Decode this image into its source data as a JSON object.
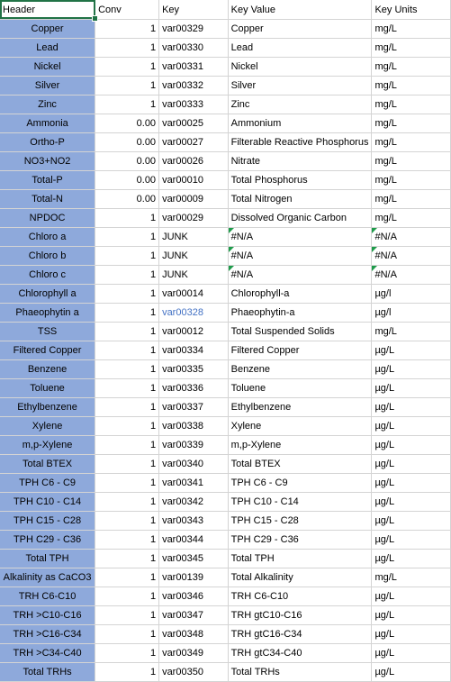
{
  "columns": [
    "Header",
    "Conv",
    "Key",
    "Key Value",
    "Key Units"
  ],
  "rows": [
    {
      "header": "Copper",
      "conv": "1",
      "key": "var00329",
      "value": "Copper",
      "units": "mg/L"
    },
    {
      "header": "Lead",
      "conv": "1",
      "key": "var00330",
      "value": "Lead",
      "units": "mg/L"
    },
    {
      "header": "Nickel",
      "conv": "1",
      "key": "var00331",
      "value": "Nickel",
      "units": "mg/L"
    },
    {
      "header": "Silver",
      "conv": "1",
      "key": "var00332",
      "value": "Silver",
      "units": "mg/L"
    },
    {
      "header": "Zinc",
      "conv": "1",
      "key": "var00333",
      "value": "Zinc",
      "units": "mg/L"
    },
    {
      "header": "Ammonia",
      "conv": "0.00",
      "key": "var00025",
      "value": "Ammonium",
      "units": "mg/L"
    },
    {
      "header": "Ortho-P",
      "conv": "0.00",
      "key": "var00027",
      "value": "Filterable Reactive Phosphorus",
      "units": "mg/L"
    },
    {
      "header": "NO3+NO2",
      "conv": "0.00",
      "key": "var00026",
      "value": "Nitrate",
      "units": "mg/L"
    },
    {
      "header": "Total-P",
      "conv": "0.00",
      "key": "var00010",
      "value": "Total Phosphorus",
      "units": "mg/L"
    },
    {
      "header": "Total-N",
      "conv": "0.00",
      "key": "var00009",
      "value": "Total Nitrogen",
      "units": "mg/L"
    },
    {
      "header": "NPDOC",
      "conv": "1",
      "key": "var00029",
      "value": "Dissolved Organic Carbon",
      "units": "mg/L"
    },
    {
      "header": "Chloro a",
      "conv": "1",
      "key": "JUNK",
      "value": "#N/A",
      "units": "#N/A",
      "error": true
    },
    {
      "header": "Chloro b",
      "conv": "1",
      "key": "JUNK",
      "value": "#N/A",
      "units": "#N/A",
      "error": true
    },
    {
      "header": "Chloro c",
      "conv": "1",
      "key": "JUNK",
      "value": "#N/A",
      "units": "#N/A",
      "error": true
    },
    {
      "header": "Chlorophyll a",
      "conv": "1",
      "key": "var00014",
      "value": "Chlorophyll-a",
      "units": "µg/l"
    },
    {
      "header": "Phaeophytin a",
      "conv": "1",
      "key": "var00328",
      "value": "Phaeophytin-a",
      "units": "µg/l",
      "link": true
    },
    {
      "header": "TSS",
      "conv": "1",
      "key": "var00012",
      "value": "Total Suspended Solids",
      "units": "mg/L"
    },
    {
      "header": "Filtered Copper",
      "conv": "1",
      "key": "var00334",
      "value": "Filtered Copper",
      "units": "µg/L"
    },
    {
      "header": "Benzene",
      "conv": "1",
      "key": "var00335",
      "value": "Benzene",
      "units": "µg/L"
    },
    {
      "header": "Toluene",
      "conv": "1",
      "key": "var00336",
      "value": "Toluene",
      "units": "µg/L"
    },
    {
      "header": "Ethylbenzene",
      "conv": "1",
      "key": "var00337",
      "value": "Ethylbenzene",
      "units": "µg/L"
    },
    {
      "header": "Xylene",
      "conv": "1",
      "key": "var00338",
      "value": "Xylene",
      "units": "µg/L"
    },
    {
      "header": "m,p-Xylene",
      "conv": "1",
      "key": "var00339",
      "value": "m,p-Xylene",
      "units": "µg/L"
    },
    {
      "header": "Total BTEX",
      "conv": "1",
      "key": "var00340",
      "value": "Total BTEX",
      "units": "µg/L"
    },
    {
      "header": "TPH C6 - C9",
      "conv": "1",
      "key": "var00341",
      "value": "TPH C6 - C9",
      "units": "µg/L"
    },
    {
      "header": "TPH C10 - C14",
      "conv": "1",
      "key": "var00342",
      "value": "TPH C10 - C14",
      "units": "µg/L"
    },
    {
      "header": "TPH C15 - C28",
      "conv": "1",
      "key": "var00343",
      "value": "TPH C15 - C28",
      "units": "µg/L"
    },
    {
      "header": "TPH C29 - C36",
      "conv": "1",
      "key": "var00344",
      "value": "TPH C29 - C36",
      "units": "µg/L"
    },
    {
      "header": "Total TPH",
      "conv": "1",
      "key": "var00345",
      "value": "Total TPH",
      "units": "µg/L"
    },
    {
      "header": "Alkalinity as CaCO3",
      "conv": "1",
      "key": "var00139",
      "value": "Total Alkalinity",
      "units": "mg/L"
    },
    {
      "header": "TRH C6-C10",
      "conv": "1",
      "key": "var00346",
      "value": "TRH C6-C10",
      "units": "µg/L"
    },
    {
      "header": "TRH >C10-C16",
      "conv": "1",
      "key": "var00347",
      "value": "TRH gtC10-C16",
      "units": "µg/L"
    },
    {
      "header": "TRH >C16-C34",
      "conv": "1",
      "key": "var00348",
      "value": "TRH gtC16-C34",
      "units": "µg/L"
    },
    {
      "header": "TRH >C34-C40",
      "conv": "1",
      "key": "var00349",
      "value": "TRH gtC34-C40",
      "units": "µg/L"
    },
    {
      "header": "Total TRHs",
      "conv": "1",
      "key": "var00350",
      "value": "Total TRHs",
      "units": "µg/L"
    }
  ]
}
